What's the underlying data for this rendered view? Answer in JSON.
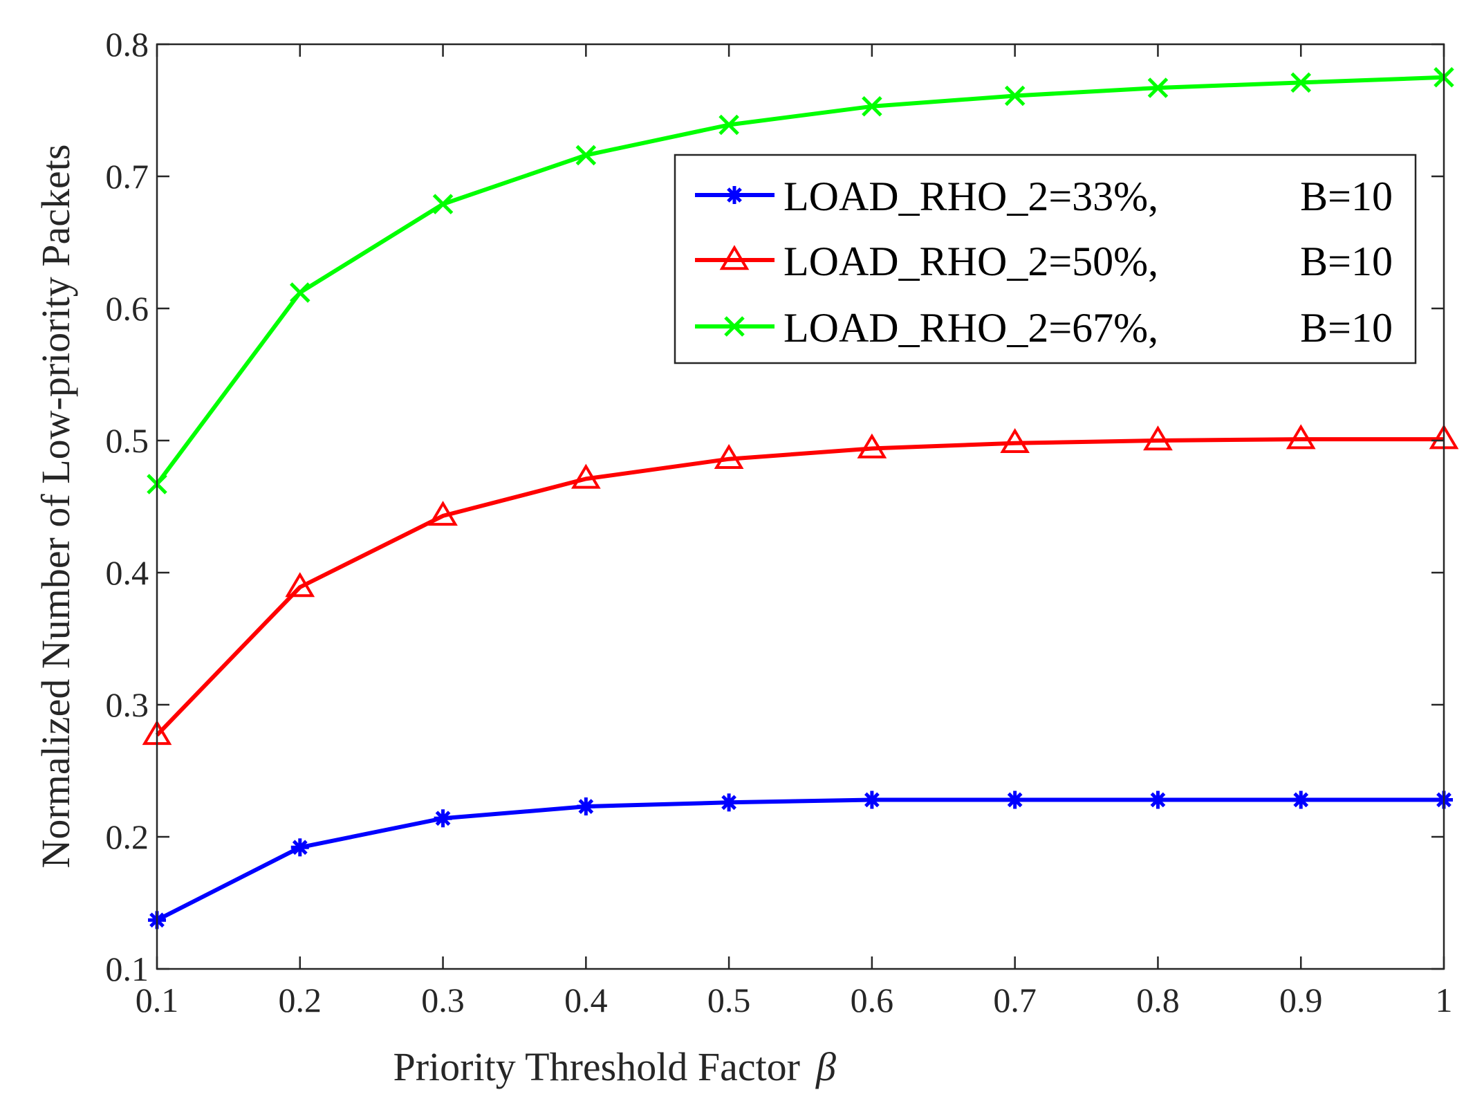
{
  "chart_data": {
    "type": "line",
    "title": "",
    "xlabel": "Priority Threshold Factor",
    "xlabel_symbol": "β",
    "ylabel": "Normalized Number of Low-priority Packets",
    "xlim": [
      0.1,
      1
    ],
    "ylim": [
      0.1,
      0.8
    ],
    "xticks": [
      0.1,
      0.2,
      0.3,
      0.4,
      0.5,
      0.6,
      0.7,
      0.8,
      0.9,
      1
    ],
    "xtick_labels": [
      "0.1",
      "0.2",
      "0.3",
      "0.4",
      "0.5",
      "0.6",
      "0.7",
      "0.8",
      "0.9",
      "1"
    ],
    "yticks": [
      0.1,
      0.2,
      0.3,
      0.4,
      0.5,
      0.6,
      0.7,
      0.8
    ],
    "ytick_labels": [
      "0.1",
      "0.2",
      "0.3",
      "0.4",
      "0.5",
      "0.6",
      "0.7",
      "0.8"
    ],
    "grid": false,
    "legend_position": "top-right",
    "x": [
      0.1,
      0.2,
      0.3,
      0.4,
      0.5,
      0.6,
      0.7,
      0.8,
      0.9,
      1.0
    ],
    "series": [
      {
        "name": "LOAD_RHO_2=33%,",
        "param": "B=10",
        "color": "#0000ff",
        "marker": "asterisk",
        "values": [
          0.137,
          0.192,
          0.214,
          0.223,
          0.226,
          0.228,
          0.228,
          0.228,
          0.228,
          0.228
        ]
      },
      {
        "name": "LOAD_RHO_2=50%,",
        "param": "B=10",
        "color": "#ff0000",
        "marker": "triangle",
        "values": [
          0.277,
          0.389,
          0.443,
          0.471,
          0.486,
          0.494,
          0.498,
          0.5,
          0.501,
          0.501
        ]
      },
      {
        "name": "LOAD_RHO_2=67%,",
        "param": "B=10",
        "color": "#00ff00",
        "marker": "x",
        "values": [
          0.467,
          0.612,
          0.679,
          0.716,
          0.739,
          0.753,
          0.761,
          0.767,
          0.771,
          0.775
        ]
      }
    ]
  }
}
